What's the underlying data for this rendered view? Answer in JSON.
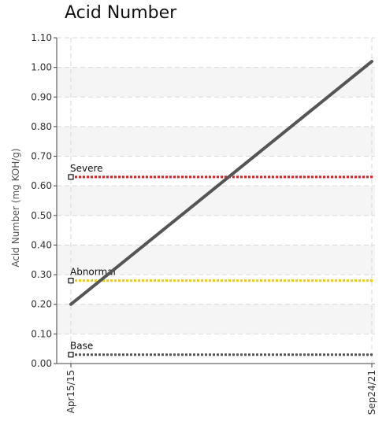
{
  "chart_data": {
    "type": "line",
    "title": "Acid Number",
    "ylabel": "Acid Number (mg KOH/g)",
    "xlabel": "",
    "x": [
      "Apr15/15",
      "Sep24/21"
    ],
    "series": [
      {
        "values": [
          0.2,
          1.02
        ],
        "color": "#555555"
      }
    ],
    "reference_lines": [
      {
        "label": "Severe",
        "value": 0.63,
        "color": "#e8191c"
      },
      {
        "label": "Abnormal",
        "value": 0.28,
        "color": "#f2cc0c"
      },
      {
        "label": "Base",
        "value": 0.03,
        "color": "#555555"
      }
    ],
    "ylim": [
      0,
      1.1
    ],
    "yticks": [
      "0.00",
      "0.10",
      "0.20",
      "0.30",
      "0.40",
      "0.50",
      "0.60",
      "0.70",
      "0.80",
      "0.90",
      "1.00",
      "1.10"
    ],
    "grid": true
  }
}
